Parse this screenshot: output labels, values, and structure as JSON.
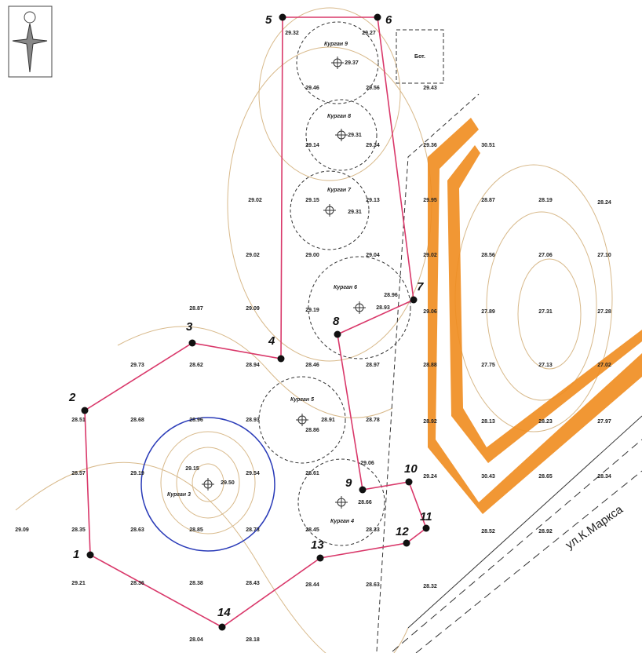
{
  "map": {
    "points": [
      "1",
      "2",
      "3",
      "4",
      "5",
      "6",
      "7",
      "8",
      "9",
      "10",
      "11",
      "12",
      "13",
      "14"
    ],
    "kurgans": [
      "Курган 9",
      "Курган 8",
      "Курган 7",
      "Курган 6",
      "Курган 5",
      "Курган 3",
      "Курган 4"
    ],
    "building": "Бот.",
    "street": "ул.К.Маркса",
    "elevations": [
      "29.32",
      "29.27",
      "29.37",
      "29.46",
      "29.56",
      "29.43",
      "29.31",
      "29.14",
      "29.34",
      "29.36",
      "30.51",
      "29.02",
      "29.15",
      "29.31",
      "29.13",
      "29.95",
      "28.87",
      "28.19",
      "28.24",
      "29.02",
      "29.00",
      "29.04",
      "29.02",
      "28.56",
      "27.06",
      "27.10",
      "28.87",
      "29.09",
      "29.19",
      "28.96",
      "28.93",
      "29.06",
      "27.89",
      "27.31",
      "27.28",
      "29.73",
      "28.62",
      "28.94",
      "28.46",
      "28.97",
      "28.88",
      "27.75",
      "27.13",
      "27.02",
      "28.51",
      "28.68",
      "28.96",
      "28.93",
      "28.91",
      "28.86",
      "28.78",
      "28.92",
      "28.13",
      "28.23",
      "27.97",
      "28.57",
      "29.19",
      "29.15",
      "29.50",
      "29.54",
      "28.61",
      "29.06",
      "29.24",
      "30.43",
      "28.65",
      "28.34",
      "29.09",
      "28.35",
      "28.63",
      "28.85",
      "28.73",
      "28.45",
      "28.66",
      "28.33",
      "28.52",
      "28.92",
      "29.21",
      "28.36",
      "28.38",
      "28.43",
      "28.44",
      "28.63",
      "28.32",
      "28.04",
      "28.18"
    ]
  }
}
